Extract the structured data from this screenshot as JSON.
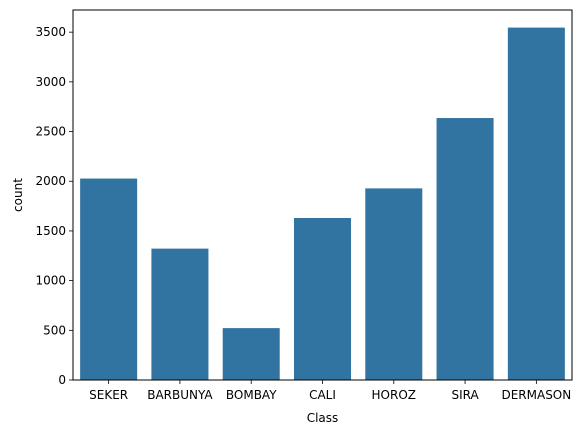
{
  "chart_data": {
    "type": "bar",
    "title": "",
    "xlabel": "Class",
    "ylabel": "count",
    "categories": [
      "SEKER",
      "BARBUNYA",
      "BOMBAY",
      "CALI",
      "HOROZ",
      "SIRA",
      "DERMASON"
    ],
    "values": [
      2027,
      1322,
      522,
      1630,
      1928,
      2636,
      3546
    ],
    "ylim": [
      0,
      3723
    ],
    "yticks": [
      0,
      500,
      1000,
      1500,
      2000,
      2500,
      3000,
      3500
    ],
    "grid": false,
    "legend": "none",
    "bar_color": "#3274a1"
  }
}
